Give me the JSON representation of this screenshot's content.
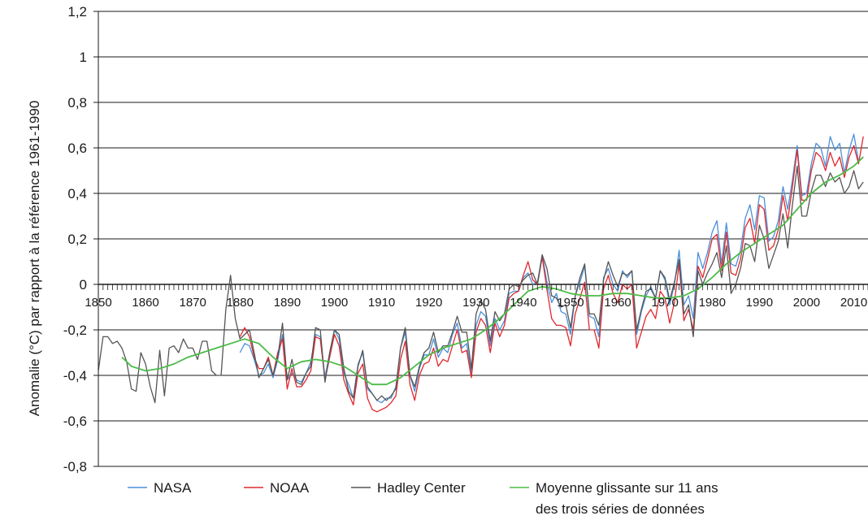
{
  "chart_data": {
    "type": "line",
    "title": "",
    "ylabel": "Anomalie (°C) par rapport à la référence 1961-1990",
    "xlabel": "",
    "xlim": [
      1850,
      2013
    ],
    "ylim": [
      -0.8,
      1.2
    ],
    "y_ticks": [
      {
        "value": 1.2,
        "label": "1,2"
      },
      {
        "value": 1.0,
        "label": "1"
      },
      {
        "value": 0.8,
        "label": "0,8"
      },
      {
        "value": 0.6,
        "label": "0,6"
      },
      {
        "value": 0.4,
        "label": "0,4"
      },
      {
        "value": 0.2,
        "label": "0,2"
      },
      {
        "value": 0.0,
        "label": "0"
      },
      {
        "value": -0.2,
        "label": "-0,2"
      },
      {
        "value": -0.4,
        "label": "-0,4"
      },
      {
        "value": -0.6,
        "label": "-0,6"
      },
      {
        "value": -0.8,
        "label": "-0,8"
      }
    ],
    "x_ticks": [
      {
        "value": 1850,
        "label": "1850"
      },
      {
        "value": 1860,
        "label": "1860"
      },
      {
        "value": 1870,
        "label": "1870"
      },
      {
        "value": 1880,
        "label": "1880"
      },
      {
        "value": 1890,
        "label": "1890"
      },
      {
        "value": 1900,
        "label": "1900"
      },
      {
        "value": 1910,
        "label": "1910"
      },
      {
        "value": 1920,
        "label": "1920"
      },
      {
        "value": 1930,
        "label": "1930"
      },
      {
        "value": 1940,
        "label": "1940"
      },
      {
        "value": 1950,
        "label": "1950"
      },
      {
        "value": 1960,
        "label": "1960"
      },
      {
        "value": 1970,
        "label": "1970"
      },
      {
        "value": 1980,
        "label": "1980"
      },
      {
        "value": 1990,
        "label": "1990"
      },
      {
        "value": 2000,
        "label": "2000"
      },
      {
        "value": 2010,
        "label": "2010"
      }
    ],
    "grid": true,
    "legend_position": "bottom",
    "series": [
      {
        "name": "NASA",
        "color": "#4a90d9",
        "x": [
          1880,
          1881,
          1882,
          1883,
          1884,
          1885,
          1886,
          1887,
          1888,
          1889,
          1890,
          1891,
          1892,
          1893,
          1894,
          1895,
          1896,
          1897,
          1898,
          1899,
          1900,
          1901,
          1902,
          1903,
          1904,
          1905,
          1906,
          1907,
          1908,
          1909,
          1910,
          1911,
          1912,
          1913,
          1914,
          1915,
          1916,
          1917,
          1918,
          1919,
          1920,
          1921,
          1922,
          1923,
          1924,
          1925,
          1926,
          1927,
          1928,
          1929,
          1930,
          1931,
          1932,
          1933,
          1934,
          1935,
          1936,
          1937,
          1938,
          1939,
          1940,
          1941,
          1942,
          1943,
          1944,
          1945,
          1946,
          1947,
          1948,
          1949,
          1950,
          1951,
          1952,
          1953,
          1954,
          1955,
          1956,
          1957,
          1958,
          1959,
          1960,
          1961,
          1962,
          1963,
          1964,
          1965,
          1966,
          1967,
          1968,
          1969,
          1970,
          1971,
          1972,
          1973,
          1974,
          1975,
          1976,
          1977,
          1978,
          1979,
          1980,
          1981,
          1982,
          1983,
          1984,
          1985,
          1986,
          1987,
          1988,
          1989,
          1990,
          1991,
          1992,
          1993,
          1994,
          1995,
          1996,
          1997,
          1998,
          1999,
          2000,
          2001,
          2002,
          2003,
          2004,
          2005,
          2006,
          2007,
          2008,
          2009,
          2010,
          2011,
          2012
        ],
        "values": [
          -0.3,
          -0.26,
          -0.27,
          -0.33,
          -0.4,
          -0.39,
          -0.35,
          -0.41,
          -0.33,
          -0.22,
          -0.42,
          -0.39,
          -0.42,
          -0.43,
          -0.39,
          -0.34,
          -0.22,
          -0.23,
          -0.41,
          -0.3,
          -0.2,
          -0.24,
          -0.39,
          -0.44,
          -0.5,
          -0.35,
          -0.3,
          -0.46,
          -0.48,
          -0.51,
          -0.52,
          -0.5,
          -0.5,
          -0.45,
          -0.28,
          -0.21,
          -0.4,
          -0.47,
          -0.37,
          -0.31,
          -0.31,
          -0.24,
          -0.32,
          -0.28,
          -0.3,
          -0.22,
          -0.17,
          -0.28,
          -0.26,
          -0.39,
          -0.18,
          -0.12,
          -0.14,
          -0.27,
          -0.15,
          -0.2,
          -0.16,
          -0.04,
          -0.03,
          -0.03,
          0.03,
          0.05,
          0.0,
          0.01,
          0.13,
          0.01,
          -0.08,
          -0.04,
          -0.12,
          -0.13,
          -0.22,
          -0.05,
          0.01,
          0.08,
          -0.14,
          -0.15,
          -0.23,
          0.03,
          0.07,
          0.0,
          -0.03,
          0.06,
          0.03,
          0.06,
          -0.22,
          -0.12,
          -0.05,
          -0.01,
          -0.06,
          0.06,
          0.02,
          -0.09,
          0.0,
          0.15,
          -0.09,
          -0.05,
          -0.15,
          0.14,
          0.07,
          0.14,
          0.23,
          0.28,
          0.09,
          0.27,
          0.09,
          0.08,
          0.15,
          0.29,
          0.35,
          0.24,
          0.39,
          0.38,
          0.19,
          0.21,
          0.28,
          0.43,
          0.33,
          0.46,
          0.61,
          0.39,
          0.4,
          0.53,
          0.62,
          0.6,
          0.52,
          0.65,
          0.59,
          0.62,
          0.49,
          0.59,
          0.66,
          0.54,
          0.56
        ]
      },
      {
        "name": "NOAA",
        "color": "#e0282e",
        "x": [
          1880,
          1881,
          1882,
          1883,
          1884,
          1885,
          1886,
          1887,
          1888,
          1889,
          1890,
          1891,
          1892,
          1893,
          1894,
          1895,
          1896,
          1897,
          1898,
          1899,
          1900,
          1901,
          1902,
          1903,
          1904,
          1905,
          1906,
          1907,
          1908,
          1909,
          1910,
          1911,
          1912,
          1913,
          1914,
          1915,
          1916,
          1917,
          1918,
          1919,
          1920,
          1921,
          1922,
          1923,
          1924,
          1925,
          1926,
          1927,
          1928,
          1929,
          1930,
          1931,
          1932,
          1933,
          1934,
          1935,
          1936,
          1937,
          1938,
          1939,
          1940,
          1941,
          1942,
          1943,
          1944,
          1945,
          1946,
          1947,
          1948,
          1949,
          1950,
          1951,
          1952,
          1953,
          1954,
          1955,
          1956,
          1957,
          1958,
          1959,
          1960,
          1961,
          1962,
          1963,
          1964,
          1965,
          1966,
          1967,
          1968,
          1969,
          1970,
          1971,
          1972,
          1973,
          1974,
          1975,
          1976,
          1977,
          1978,
          1979,
          1980,
          1981,
          1982,
          1983,
          1984,
          1985,
          1986,
          1987,
          1988,
          1989,
          1990,
          1991,
          1992,
          1993,
          1994,
          1995,
          1996,
          1997,
          1998,
          1999,
          2000,
          2001,
          2002,
          2003,
          2004,
          2005,
          2006,
          2007,
          2008,
          2009,
          2010,
          2011,
          2012
        ],
        "values": [
          -0.23,
          -0.19,
          -0.23,
          -0.32,
          -0.37,
          -0.37,
          -0.32,
          -0.4,
          -0.3,
          -0.24,
          -0.46,
          -0.37,
          -0.45,
          -0.45,
          -0.42,
          -0.38,
          -0.23,
          -0.24,
          -0.42,
          -0.32,
          -0.22,
          -0.27,
          -0.42,
          -0.48,
          -0.53,
          -0.39,
          -0.35,
          -0.5,
          -0.55,
          -0.56,
          -0.55,
          -0.54,
          -0.52,
          -0.49,
          -0.33,
          -0.25,
          -0.44,
          -0.51,
          -0.4,
          -0.35,
          -0.34,
          -0.28,
          -0.36,
          -0.33,
          -0.34,
          -0.27,
          -0.2,
          -0.3,
          -0.29,
          -0.41,
          -0.21,
          -0.15,
          -0.18,
          -0.3,
          -0.17,
          -0.23,
          -0.18,
          -0.06,
          -0.04,
          -0.03,
          0.04,
          0.1,
          0.02,
          0.0,
          0.12,
          -0.02,
          -0.15,
          -0.18,
          -0.18,
          -0.19,
          -0.27,
          -0.13,
          -0.06,
          0.01,
          -0.2,
          -0.2,
          -0.28,
          -0.02,
          0.04,
          -0.04,
          -0.08,
          0.0,
          -0.02,
          0.0,
          -0.28,
          -0.21,
          -0.14,
          -0.11,
          -0.15,
          -0.03,
          -0.06,
          -0.17,
          -0.08,
          0.09,
          -0.16,
          -0.11,
          -0.2,
          0.08,
          0.03,
          0.11,
          0.2,
          0.22,
          0.06,
          0.23,
          0.05,
          0.04,
          0.11,
          0.25,
          0.29,
          0.18,
          0.35,
          0.33,
          0.15,
          0.17,
          0.24,
          0.39,
          0.28,
          0.43,
          0.59,
          0.37,
          0.37,
          0.5,
          0.58,
          0.56,
          0.5,
          0.58,
          0.52,
          0.56,
          0.47,
          0.56,
          0.61,
          0.53,
          0.65
        ]
      },
      {
        "name": "Hadley Center",
        "color": "#555555",
        "x": [
          1850,
          1851,
          1852,
          1853,
          1854,
          1855,
          1856,
          1857,
          1858,
          1859,
          1860,
          1861,
          1862,
          1863,
          1864,
          1865,
          1866,
          1867,
          1868,
          1869,
          1870,
          1871,
          1872,
          1873,
          1874,
          1875,
          1876,
          1877,
          1878,
          1879,
          1880,
          1881,
          1882,
          1883,
          1884,
          1885,
          1886,
          1887,
          1888,
          1889,
          1890,
          1891,
          1892,
          1893,
          1894,
          1895,
          1896,
          1897,
          1898,
          1899,
          1900,
          1901,
          1902,
          1903,
          1904,
          1905,
          1906,
          1907,
          1908,
          1909,
          1910,
          1911,
          1912,
          1913,
          1914,
          1915,
          1916,
          1917,
          1918,
          1919,
          1920,
          1921,
          1922,
          1923,
          1924,
          1925,
          1926,
          1927,
          1928,
          1929,
          1930,
          1931,
          1932,
          1933,
          1934,
          1935,
          1936,
          1937,
          1938,
          1939,
          1940,
          1941,
          1942,
          1943,
          1944,
          1945,
          1946,
          1947,
          1948,
          1949,
          1950,
          1951,
          1952,
          1953,
          1954,
          1955,
          1956,
          1957,
          1958,
          1959,
          1960,
          1961,
          1962,
          1963,
          1964,
          1965,
          1966,
          1967,
          1968,
          1969,
          1970,
          1971,
          1972,
          1973,
          1974,
          1975,
          1976,
          1977,
          1978,
          1979,
          1980,
          1981,
          1982,
          1983,
          1984,
          1985,
          1986,
          1987,
          1988,
          1989,
          1990,
          1991,
          1992,
          1993,
          1994,
          1995,
          1996,
          1997,
          1998,
          1999,
          2000,
          2001,
          2002,
          2003,
          2004,
          2005,
          2006,
          2007,
          2008,
          2009,
          2010,
          2011,
          2012
        ],
        "values": [
          -0.38,
          -0.23,
          -0.23,
          -0.26,
          -0.25,
          -0.28,
          -0.34,
          -0.46,
          -0.47,
          -0.3,
          -0.35,
          -0.45,
          -0.52,
          -0.29,
          -0.49,
          -0.28,
          -0.27,
          -0.3,
          -0.24,
          -0.28,
          -0.28,
          -0.33,
          -0.25,
          -0.25,
          -0.38,
          -0.4,
          -0.4,
          -0.11,
          0.04,
          -0.15,
          -0.24,
          -0.22,
          -0.2,
          -0.3,
          -0.41,
          -0.37,
          -0.33,
          -0.4,
          -0.32,
          -0.17,
          -0.42,
          -0.33,
          -0.43,
          -0.44,
          -0.39,
          -0.36,
          -0.19,
          -0.2,
          -0.43,
          -0.3,
          -0.2,
          -0.22,
          -0.37,
          -0.47,
          -0.5,
          -0.36,
          -0.29,
          -0.45,
          -0.48,
          -0.51,
          -0.49,
          -0.51,
          -0.49,
          -0.46,
          -0.28,
          -0.19,
          -0.4,
          -0.45,
          -0.36,
          -0.3,
          -0.28,
          -0.21,
          -0.3,
          -0.27,
          -0.27,
          -0.21,
          -0.14,
          -0.21,
          -0.21,
          -0.37,
          -0.13,
          -0.07,
          -0.11,
          -0.25,
          -0.12,
          -0.16,
          -0.13,
          -0.02,
          0.0,
          -0.01,
          0.02,
          0.04,
          0.05,
          0.0,
          0.13,
          0.07,
          -0.05,
          -0.06,
          -0.1,
          -0.09,
          -0.19,
          -0.05,
          0.03,
          0.09,
          -0.13,
          -0.13,
          -0.18,
          0.02,
          0.1,
          0.04,
          -0.01,
          0.05,
          0.04,
          0.06,
          -0.2,
          -0.11,
          -0.03,
          -0.02,
          -0.06,
          0.06,
          0.03,
          -0.07,
          0.01,
          0.11,
          -0.13,
          -0.09,
          -0.23,
          0.06,
          -0.0,
          0.05,
          0.09,
          0.14,
          0.03,
          0.17,
          -0.04,
          0.0,
          0.07,
          0.18,
          0.17,
          0.1,
          0.26,
          0.2,
          0.07,
          0.13,
          0.19,
          0.31,
          0.16,
          0.35,
          0.52,
          0.3,
          0.3,
          0.41,
          0.48,
          0.48,
          0.43,
          0.49,
          0.45,
          0.47,
          0.4,
          0.43,
          0.5,
          0.42,
          0.45
        ]
      },
      {
        "name": "Moyenne glissante sur 11 ans des trois séries de données",
        "color": "#4cbb47",
        "x": [
          1855,
          1857,
          1860,
          1863,
          1866,
          1869,
          1872,
          1875,
          1878,
          1881,
          1884,
          1887,
          1890,
          1893,
          1896,
          1899,
          1902,
          1905,
          1908,
          1911,
          1914,
          1917,
          1920,
          1923,
          1926,
          1929,
          1932,
          1935,
          1938,
          1941,
          1944,
          1947,
          1950,
          1953,
          1956,
          1959,
          1962,
          1965,
          1968,
          1971,
          1974,
          1977,
          1980,
          1983,
          1986,
          1989,
          1992,
          1995,
          1998,
          2001,
          2004,
          2007,
          2010,
          2012
        ],
        "values": [
          -0.32,
          -0.36,
          -0.38,
          -0.37,
          -0.35,
          -0.32,
          -0.3,
          -0.28,
          -0.26,
          -0.24,
          -0.26,
          -0.32,
          -0.37,
          -0.34,
          -0.33,
          -0.34,
          -0.36,
          -0.4,
          -0.44,
          -0.44,
          -0.41,
          -0.36,
          -0.31,
          -0.28,
          -0.26,
          -0.24,
          -0.2,
          -0.15,
          -0.09,
          -0.03,
          -0.01,
          -0.02,
          -0.04,
          -0.05,
          -0.05,
          -0.04,
          -0.04,
          -0.05,
          -0.06,
          -0.06,
          -0.05,
          -0.02,
          0.03,
          0.09,
          0.14,
          0.18,
          0.22,
          0.26,
          0.33,
          0.4,
          0.45,
          0.48,
          0.52,
          0.56
        ]
      }
    ]
  },
  "legend": {
    "items": [
      {
        "label": "NASA",
        "color": "#4a90d9"
      },
      {
        "label": "NOAA",
        "color": "#e0282e"
      },
      {
        "label": "Hadley Center",
        "color": "#555555"
      },
      {
        "label": "Moyenne glissante sur 11 ans",
        "label2": "des trois séries de données",
        "color": "#4cbb47"
      }
    ]
  }
}
